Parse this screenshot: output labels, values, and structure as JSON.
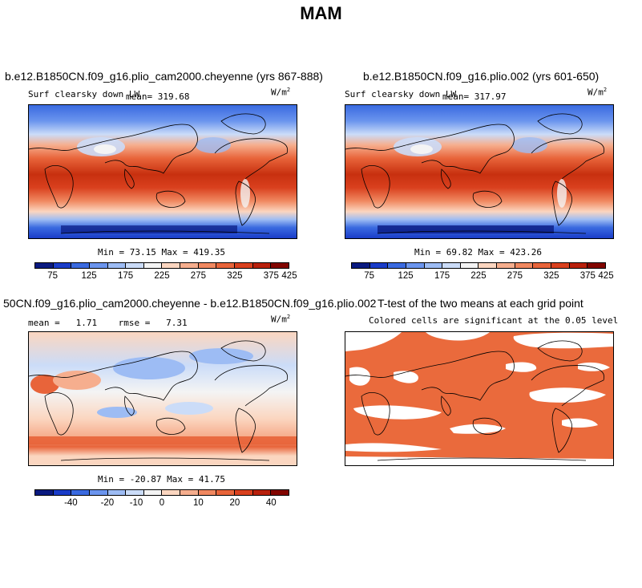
{
  "title": "MAM",
  "panels": {
    "top_left": {
      "case": "b.e12.B1850CN.f09_g16.plio_cam2000.cheyenne (yrs 867-888)",
      "variable": "Surf clearsky down LW",
      "mean": "mean= 319.68",
      "units": "W/m",
      "units_exp": "2",
      "minmax": "Min =  73.15 Max = 419.35"
    },
    "top_right": {
      "case": "b.e12.B1850CN.f09_g16.plio.002 (yrs 601-650)",
      "variable": "Surf clearsky down LW",
      "mean": "mean= 317.97",
      "units": "W/m",
      "units_exp": "2",
      "minmax": "Min =  69.82 Max = 423.26"
    },
    "bottom_left": {
      "case": "50CN.f09_g16.plio_cam2000.cheyenne - b.e12.B1850CN.f09_g16.plio.002",
      "stats": "mean =   1.71    rmse =   7.31",
      "units": "W/m",
      "units_exp": "2",
      "minmax": "Min = -20.87 Max =  41.75"
    },
    "bottom_right": {
      "title": "T-test of the two means at each grid point",
      "subtitle": "Colored cells are significant at the 0.05 level"
    }
  },
  "colorbar_abs": {
    "ticks": [
      "75",
      "125",
      "175",
      "225",
      "275",
      "325",
      "375",
      "425"
    ],
    "colors": [
      "#0a1a80",
      "#1a3cc8",
      "#3a6ae0",
      "#6b95ee",
      "#9dbcf4",
      "#cbdcf8",
      "#f4f4f4",
      "#fbd6c0",
      "#f6ae8e",
      "#f08860",
      "#e8643a",
      "#d9401e",
      "#b8200c",
      "#820500"
    ]
  },
  "colorbar_diff": {
    "ticks": [
      "-40",
      "-20",
      "-10",
      "0",
      "10",
      "20",
      "40"
    ],
    "colors": [
      "#0a1a80",
      "#1a3cc8",
      "#3a6ae0",
      "#6b95ee",
      "#9dbcf4",
      "#cbdcf8",
      "#f4f4f4",
      "#fbd6c0",
      "#f6ae8e",
      "#f08860",
      "#e8643a",
      "#d9401e",
      "#b8200c",
      "#820500"
    ]
  },
  "ttest_color": "#ea6a3c"
}
